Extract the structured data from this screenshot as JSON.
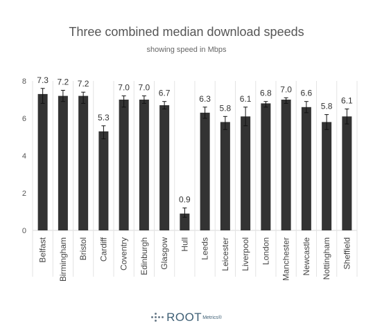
{
  "chart_data": {
    "type": "bar",
    "title": "Three combined median download speeds",
    "subtitle": "showing speed in Mbps",
    "categories": [
      "Belfast",
      "Birmingham",
      "Bristol",
      "Cardiff",
      "Coventry",
      "Edinburgh",
      "Glasgow",
      "Hull",
      "Leeds",
      "Leicester",
      "Liverpool",
      "London",
      "Manchester",
      "Newcastle",
      "Nottingham",
      "Sheffield"
    ],
    "values": [
      7.3,
      7.2,
      7.2,
      5.3,
      7.0,
      7.0,
      6.7,
      0.9,
      6.3,
      5.8,
      6.1,
      6.8,
      7.0,
      6.6,
      5.8,
      6.1
    ],
    "value_labels": [
      "7.3",
      "7.2",
      "7.2",
      "5.3",
      "7.0",
      "7.0",
      "6.7",
      "0.9",
      "6.3",
      "5.8",
      "6.1",
      "6.8",
      "7.0",
      "6.6",
      "5.8",
      "6.1"
    ],
    "error_low": [
      6.8,
      6.9,
      6.8,
      4.9,
      6.6,
      6.8,
      6.5,
      0.7,
      6.0,
      5.4,
      5.6,
      6.6,
      6.8,
      6.3,
      5.4,
      5.7
    ],
    "error_high": [
      7.6,
      7.5,
      7.4,
      5.6,
      7.2,
      7.2,
      6.9,
      1.2,
      6.6,
      6.1,
      6.6,
      6.9,
      7.1,
      6.9,
      6.2,
      6.5
    ],
    "ylim": [
      0,
      8
    ],
    "yticks": [
      "0",
      "2",
      "4",
      "6",
      "8"
    ],
    "xlabel": "",
    "ylabel": "",
    "grid": false,
    "bar_color": "#333333"
  },
  "brand": {
    "name": "ROOT",
    "suffix": "Metrics®"
  }
}
